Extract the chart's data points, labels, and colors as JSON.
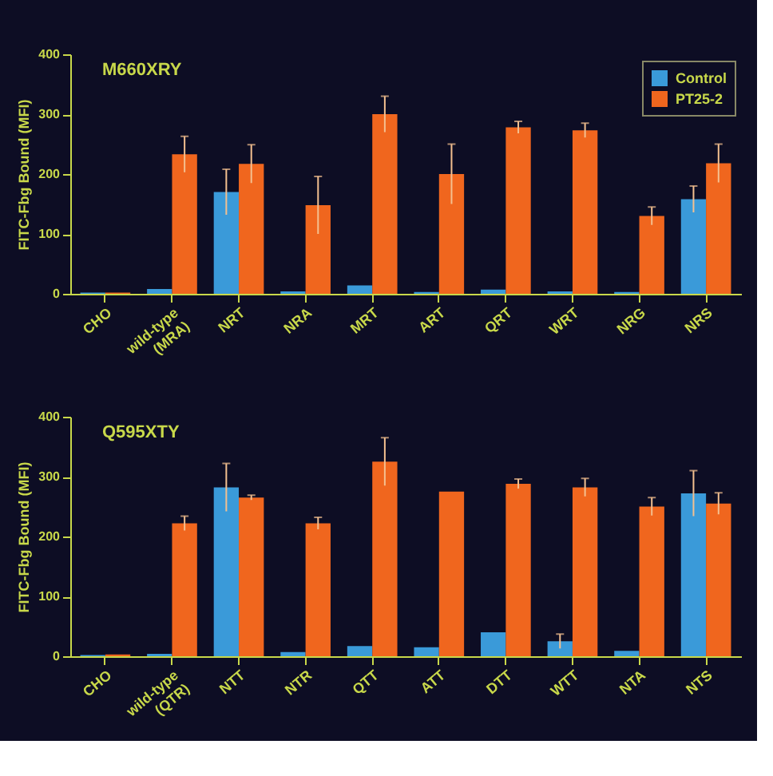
{
  "chart_data": [
    {
      "type": "bar",
      "title": "M660XRY",
      "ylabel": "FITC-Fbg Bound (MFI)",
      "categories": [
        "CHO",
        "wild-type (MRA)",
        "NRT",
        "NRA",
        "MRT",
        "ART",
        "QRT",
        "WRT",
        "NRG",
        "NRS"
      ],
      "ylim": [
        0,
        400
      ],
      "yticks": [
        0,
        100,
        200,
        300,
        400
      ],
      "grid": false,
      "legend": "top right",
      "series": [
        {
          "name": "Control",
          "color": "#3a9ad9",
          "values": [
            2,
            8,
            170,
            4,
            14,
            3,
            7,
            4,
            3,
            158
          ],
          "errors": [
            null,
            null,
            38,
            null,
            null,
            null,
            null,
            null,
            null,
            22
          ]
        },
        {
          "name": "PT25-2",
          "color": "#f0661e",
          "values": [
            2,
            233,
            217,
            148,
            300,
            200,
            278,
            273,
            130,
            218
          ],
          "errors": [
            null,
            30,
            32,
            48,
            30,
            50,
            10,
            12,
            15,
            32
          ]
        }
      ]
    },
    {
      "type": "bar",
      "title": "Q595XTY",
      "ylabel": "FITC-Fbg Bound (MFI)",
      "categories": [
        "CHO",
        "wild-type (QTR)",
        "NTT",
        "NTR",
        "QTT",
        "ATT",
        "DTT",
        "WTT",
        "NTA",
        "NTS"
      ],
      "ylim": [
        0,
        400
      ],
      "yticks": [
        0,
        100,
        200,
        300,
        400
      ],
      "grid": false,
      "legend": false,
      "series": [
        {
          "name": "Control",
          "color": "#3a9ad9",
          "values": [
            2,
            4,
            282,
            7,
            17,
            15,
            40,
            25,
            9,
            272
          ],
          "errors": [
            null,
            null,
            40,
            null,
            null,
            null,
            null,
            12,
            null,
            38
          ]
        },
        {
          "name": "PT25-2",
          "color": "#f0661e",
          "values": [
            3,
            222,
            265,
            222,
            325,
            275,
            288,
            282,
            250,
            255
          ],
          "errors": [
            null,
            12,
            4,
            10,
            40,
            null,
            8,
            15,
            15,
            18
          ]
        }
      ]
    }
  ]
}
